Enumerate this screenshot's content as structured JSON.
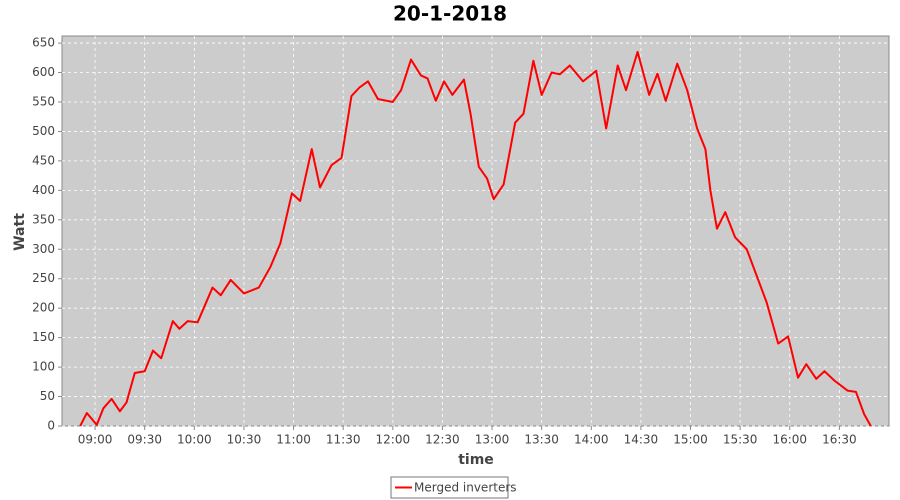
{
  "chart_data": {
    "type": "line",
    "title": "20-1-2018",
    "x_label": "time",
    "y_label": "Watt",
    "x": [
      "08:51",
      "08:55",
      "09:01",
      "09:05",
      "09:10",
      "09:15",
      "09:19",
      "09:24",
      "09:30",
      "09:35",
      "09:40",
      "09:47",
      "09:51",
      "09:56",
      "10:02",
      "10:11",
      "10:16",
      "10:22",
      "10:30",
      "10:39",
      "10:46",
      "10:52",
      "10:59",
      "11:04",
      "11:11",
      "11:16",
      "11:23",
      "11:29",
      "11:35",
      "11:40",
      "11:45",
      "11:51",
      "12:00",
      "12:05",
      "12:11",
      "12:17",
      "12:21",
      "12:26",
      "12:31",
      "12:36",
      "12:43",
      "12:47",
      "12:52",
      "12:57",
      "13:01",
      "13:07",
      "13:14",
      "13:19",
      "13:25",
      "13:30",
      "13:36",
      "13:41",
      "13:47",
      "13:55",
      "14:03",
      "14:09",
      "14:16",
      "14:21",
      "14:28",
      "14:35",
      "14:40",
      "14:45",
      "14:52",
      "14:58",
      "15:04",
      "15:09",
      "15:12",
      "15:16",
      "15:21",
      "15:27",
      "15:34",
      "15:40",
      "15:46",
      "15:53",
      "15:59",
      "16:05",
      "16:10",
      "16:16",
      "16:21",
      "16:27",
      "16:35",
      "16:40",
      "16:45",
      "16:49"
    ],
    "series": [
      {
        "name": "Merged inverters",
        "color": "#ff0000",
        "values": [
          0,
          22,
          2,
          30,
          46,
          25,
          40,
          90,
          93,
          128,
          115,
          178,
          165,
          178,
          176,
          235,
          222,
          248,
          225,
          235,
          270,
          310,
          395,
          382,
          470,
          405,
          443,
          455,
          560,
          575,
          585,
          555,
          550,
          570,
          622,
          595,
          590,
          552,
          585,
          562,
          588,
          530,
          440,
          420,
          385,
          410,
          515,
          530,
          620,
          562,
          600,
          597,
          612,
          585,
          603,
          505,
          612,
          570,
          635,
          562,
          598,
          552,
          615,
          570,
          505,
          470,
          400,
          335,
          363,
          320,
          300,
          255,
          210,
          140,
          152,
          82,
          105,
          80,
          93,
          77,
          60,
          58,
          20,
          0
        ]
      }
    ],
    "xlim": [
      "08:40",
      "17:00"
    ],
    "xticks": [
      "09:00",
      "09:30",
      "10:00",
      "10:30",
      "11:00",
      "11:30",
      "12:00",
      "12:30",
      "13:00",
      "13:30",
      "14:00",
      "14:30",
      "15:00",
      "15:30",
      "16:00",
      "16:30"
    ],
    "ylim": [
      0,
      662
    ],
    "yticks": [
      0,
      50,
      100,
      150,
      200,
      250,
      300,
      350,
      400,
      450,
      500,
      550,
      600,
      650
    ],
    "grid": true,
    "legend": "bottom"
  }
}
